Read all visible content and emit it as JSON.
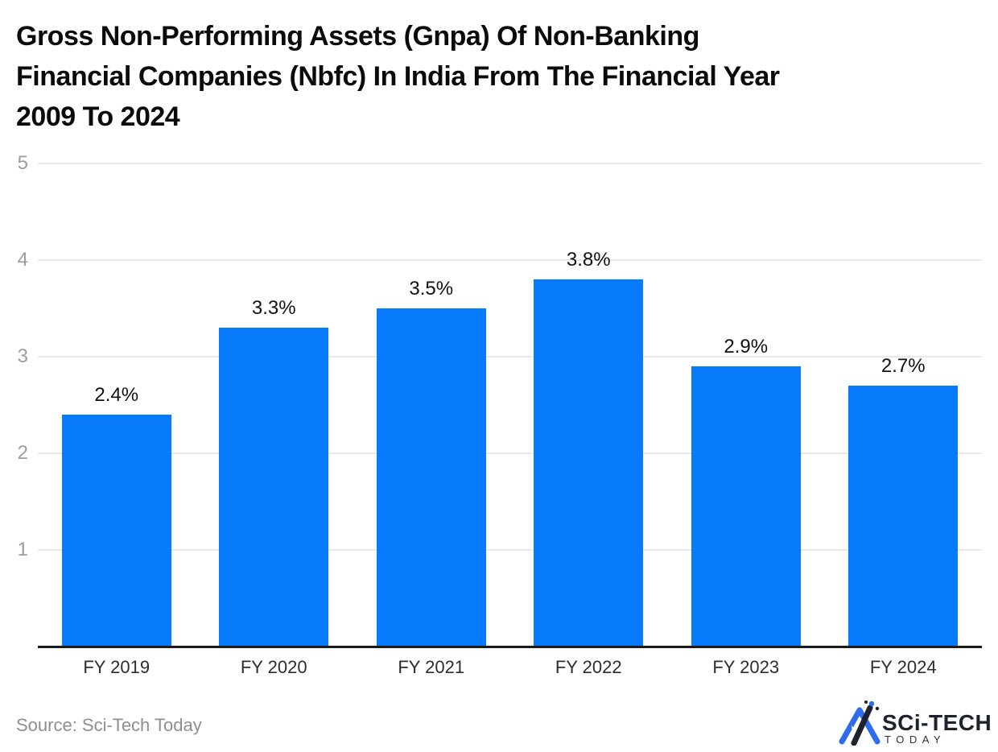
{
  "title": {
    "full": "Gross Non-Performing Assets (Gnpa) Of Non-Banking Financial Companies (Nbfc) In India From The Financial Year 2009 To 2024",
    "lines": [
      "Gross Non-Performing Assets (Gnpa) Of Non-Banking",
      "Financial Companies (Nbfc) In India From The Financial Year",
      "2009 To 2024"
    ]
  },
  "chart_data": {
    "type": "bar",
    "title": "Gross Non-Performing Assets (Gnpa) Of Non-Banking Financial Companies (Nbfc) In India From The Financial Year 2009 To 2024",
    "categories": [
      "FY 2019",
      "FY 2020",
      "FY 2021",
      "FY 2022",
      "FY 2023",
      "FY 2024"
    ],
    "values": [
      2.4,
      3.3,
      3.5,
      3.8,
      2.9,
      2.7
    ],
    "value_labels": [
      "2.4%",
      "3.3%",
      "3.5%",
      "3.8%",
      "2.9%",
      "2.7%"
    ],
    "xlabel": "",
    "ylabel": "",
    "ylim": [
      0,
      5
    ],
    "yticks": [
      1,
      2,
      3,
      4,
      5
    ],
    "grid": true,
    "legend_position": "none",
    "bar_color": "#077bfb"
  },
  "colors": {
    "bar": "#077bfb",
    "gridline": "#e8e8e8",
    "axis_line": "#1a1a1a",
    "y_tick_text": "#9c9c9c",
    "x_tick_text": "#2d2d2d",
    "value_label_text": "#111111",
    "title_text": "#0b0b0b",
    "source_text": "#8f8f8f",
    "logo_blue": "#2e6bee",
    "logo_dark": "#1d222c"
  },
  "footer": {
    "source": "Source: Sci-Tech Today",
    "logo": {
      "name": "sci-tech-today-logo",
      "text": "SCi-TECH",
      "subtext": "TODAY"
    }
  }
}
